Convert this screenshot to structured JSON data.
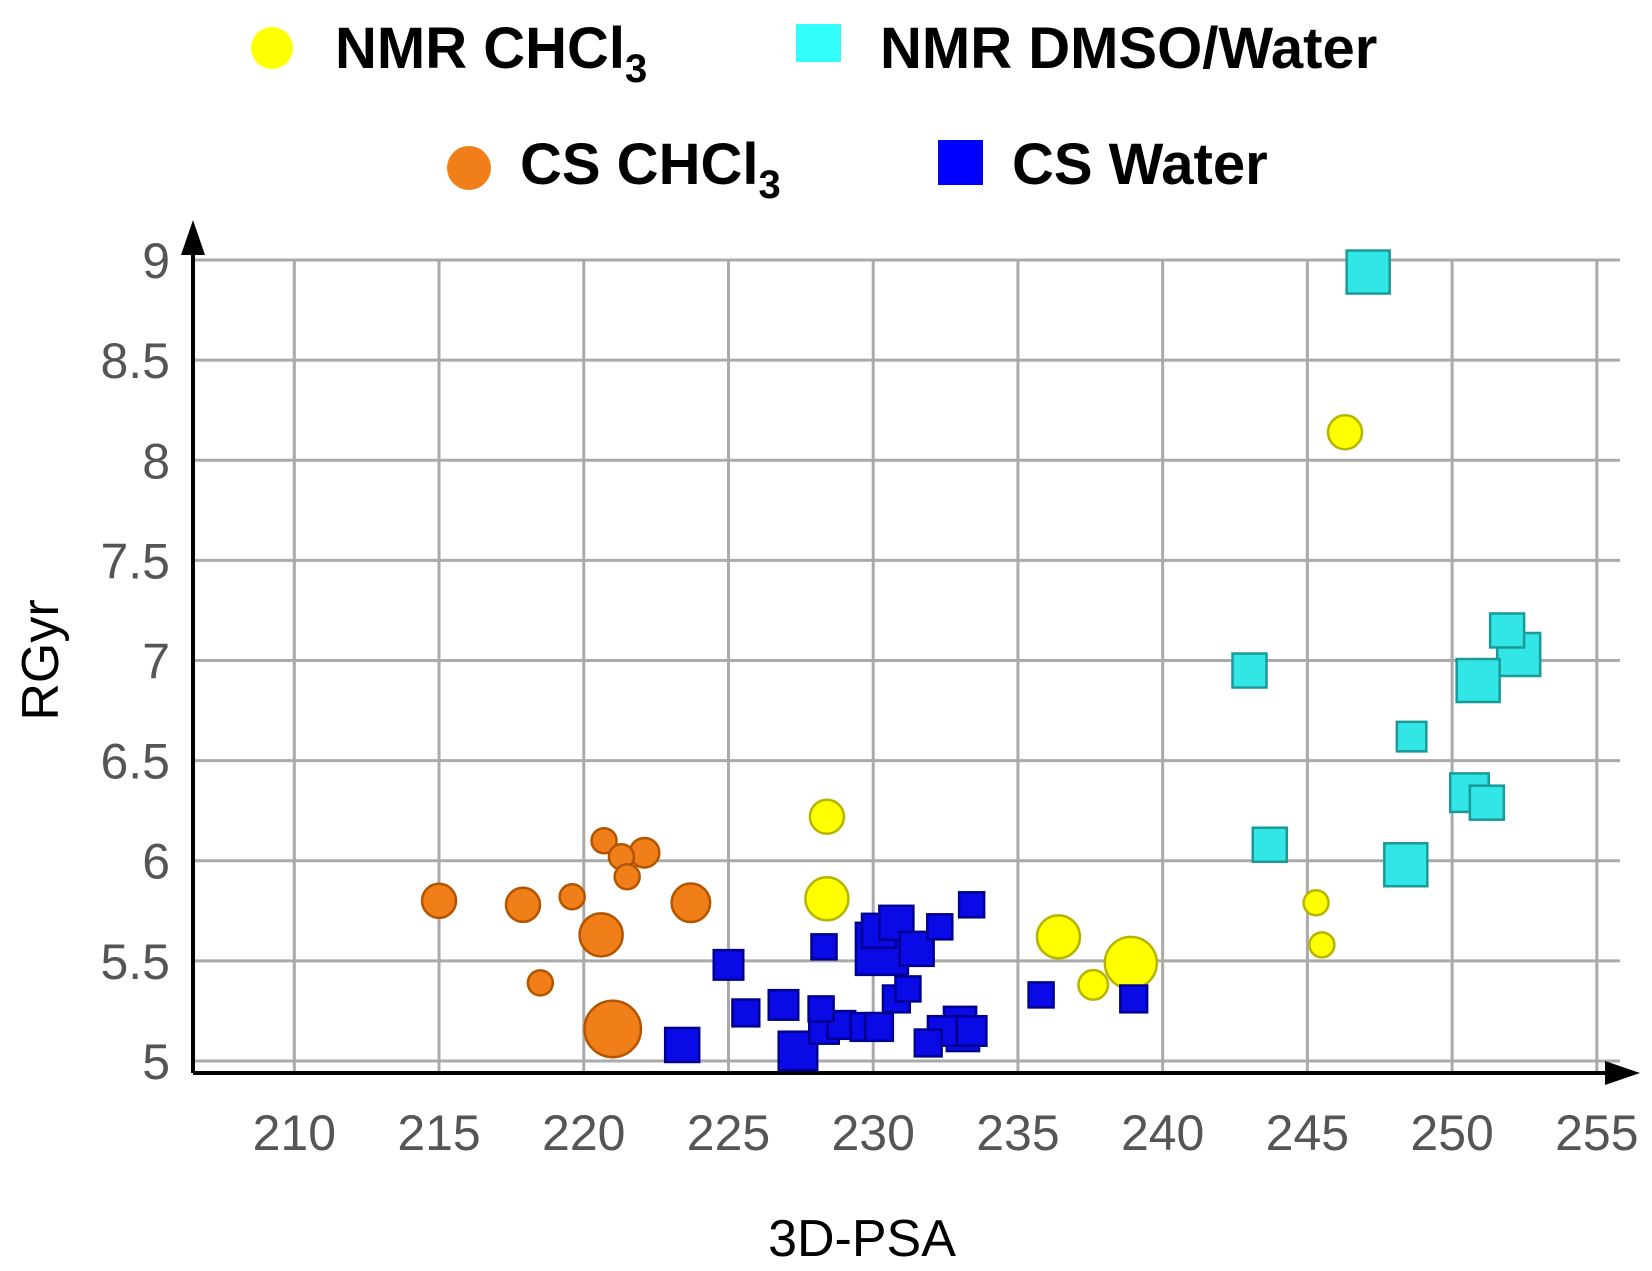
{
  "chart_data": {
    "type": "scatter",
    "title": "",
    "xlabel": "3D-PSA",
    "ylabel": "RGyr",
    "xlim": [
      206.5,
      255.8
    ],
    "ylim": [
      4.94,
      9.1
    ],
    "xticks": [
      210,
      215,
      220,
      225,
      230,
      235,
      240,
      245,
      250,
      255
    ],
    "yticks": [
      5,
      5.5,
      6,
      6.5,
      7,
      7.5,
      8,
      8.5,
      9
    ],
    "xtick_labels": [
      "210",
      "215",
      "220",
      "225",
      "230",
      "235",
      "240",
      "245",
      "250",
      "255"
    ],
    "ytick_labels": [
      "5",
      "5.5",
      "6",
      "6.5",
      "7",
      "7.5",
      "8",
      "8.5",
      "9"
    ],
    "grid": true,
    "legend": {
      "placement": "top",
      "entries": [
        {
          "series": 0,
          "text": "NMR CHCl",
          "sub": "3"
        },
        {
          "series": 1,
          "text": "NMR DMSO/Water",
          "sub": ""
        },
        {
          "series": 2,
          "text": "CS CHCl",
          "sub": "3"
        },
        {
          "series": 3,
          "text": "CS Water",
          "sub": ""
        }
      ]
    },
    "series": [
      {
        "name": "NMR CHCl3",
        "shape": "circle",
        "color": "#ffff00",
        "stroke": "#b5b500",
        "points": [
          {
            "x": 246.3,
            "y": 8.14,
            "size": 2
          },
          {
            "x": 228.4,
            "y": 6.22,
            "size": 2
          },
          {
            "x": 228.4,
            "y": 5.81,
            "size": 3
          },
          {
            "x": 236.4,
            "y": 5.62,
            "size": 3
          },
          {
            "x": 238.9,
            "y": 5.49,
            "size": 4
          },
          {
            "x": 237.6,
            "y": 5.38,
            "size": 1.5
          },
          {
            "x": 245.3,
            "y": 5.79,
            "size": 1
          },
          {
            "x": 245.5,
            "y": 5.58,
            "size": 1
          }
        ]
      },
      {
        "name": "NMR DMSO/Water",
        "shape": "square",
        "color": "#33e6e6",
        "stroke": "#1a9999",
        "points": [
          {
            "x": 247.1,
            "y": 8.94,
            "size": 3
          },
          {
            "x": 243.0,
            "y": 6.95,
            "size": 2
          },
          {
            "x": 251.9,
            "y": 7.15,
            "size": 2
          },
          {
            "x": 252.3,
            "y": 7.03,
            "size": 3
          },
          {
            "x": 250.9,
            "y": 6.9,
            "size": 3
          },
          {
            "x": 248.6,
            "y": 6.62,
            "size": 1.5
          },
          {
            "x": 250.6,
            "y": 6.34,
            "size": 2.5
          },
          {
            "x": 251.2,
            "y": 6.29,
            "size": 2
          },
          {
            "x": 243.7,
            "y": 6.08,
            "size": 2
          },
          {
            "x": 248.4,
            "y": 5.98,
            "size": 3
          }
        ]
      },
      {
        "name": "CS CHCl3",
        "shape": "circle",
        "color": "#f07f1a",
        "stroke": "#b35500",
        "points": [
          {
            "x": 215.0,
            "y": 5.8,
            "size": 2
          },
          {
            "x": 217.9,
            "y": 5.78,
            "size": 2
          },
          {
            "x": 219.6,
            "y": 5.82,
            "size": 1
          },
          {
            "x": 220.7,
            "y": 6.1,
            "size": 1
          },
          {
            "x": 221.3,
            "y": 6.02,
            "size": 1
          },
          {
            "x": 222.1,
            "y": 6.04,
            "size": 1.5
          },
          {
            "x": 221.5,
            "y": 5.92,
            "size": 1
          },
          {
            "x": 223.7,
            "y": 5.79,
            "size": 2.5
          },
          {
            "x": 220.6,
            "y": 5.63,
            "size": 3
          },
          {
            "x": 218.5,
            "y": 5.39,
            "size": 1
          },
          {
            "x": 221.0,
            "y": 5.16,
            "size": 4.5
          }
        ]
      },
      {
        "name": "CS Water",
        "shape": "square",
        "color": "#0a0ae6",
        "stroke": "#000090",
        "points": [
          {
            "x": 223.4,
            "y": 5.08,
            "size": 2
          },
          {
            "x": 227.4,
            "y": 5.05,
            "size": 2.5
          },
          {
            "x": 225.0,
            "y": 5.48,
            "size": 1.5
          },
          {
            "x": 225.6,
            "y": 5.24,
            "size": 1.2
          },
          {
            "x": 226.9,
            "y": 5.28,
            "size": 1.5
          },
          {
            "x": 228.2,
            "y": 5.26,
            "size": 1
          },
          {
            "x": 228.3,
            "y": 5.57,
            "size": 1
          },
          {
            "x": 228.3,
            "y": 5.16,
            "size": 1.5
          },
          {
            "x": 228.9,
            "y": 5.18,
            "size": 1.3
          },
          {
            "x": 229.7,
            "y": 5.17,
            "size": 1.3
          },
          {
            "x": 230.2,
            "y": 5.17,
            "size": 1.3
          },
          {
            "x": 230.2,
            "y": 5.65,
            "size": 2
          },
          {
            "x": 230.3,
            "y": 5.56,
            "size": 4
          },
          {
            "x": 230.8,
            "y": 5.69,
            "size": 2
          },
          {
            "x": 231.5,
            "y": 5.56,
            "size": 2
          },
          {
            "x": 230.8,
            "y": 5.31,
            "size": 1.2
          },
          {
            "x": 231.2,
            "y": 5.36,
            "size": 1
          },
          {
            "x": 231.9,
            "y": 5.09,
            "size": 1.2
          },
          {
            "x": 232.3,
            "y": 5.67,
            "size": 1
          },
          {
            "x": 232.4,
            "y": 5.15,
            "size": 1.5
          },
          {
            "x": 233.0,
            "y": 5.19,
            "size": 1.8
          },
          {
            "x": 233.1,
            "y": 5.13,
            "size": 1.8
          },
          {
            "x": 233.4,
            "y": 5.15,
            "size": 1.5
          },
          {
            "x": 233.4,
            "y": 5.78,
            "size": 1
          },
          {
            "x": 235.8,
            "y": 5.33,
            "size": 1
          },
          {
            "x": 239.0,
            "y": 5.31,
            "size": 1.2
          }
        ]
      }
    ]
  }
}
